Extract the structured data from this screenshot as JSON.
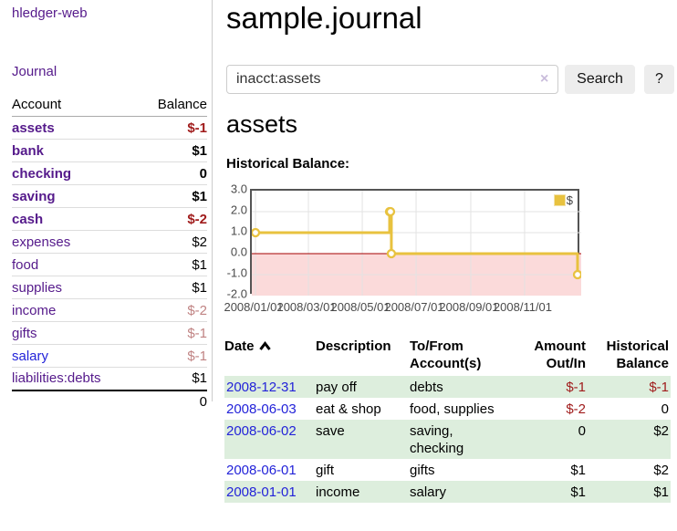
{
  "app": {
    "brand": "hledger-web",
    "nav_journal": "Journal"
  },
  "sidebar": {
    "col_account": "Account",
    "col_balance": "Balance",
    "accounts": [
      {
        "name": "assets",
        "balance": "$-1"
      },
      {
        "name": "bank",
        "balance": "$1"
      },
      {
        "name": "checking",
        "balance": "0"
      },
      {
        "name": "saving",
        "balance": "$1"
      },
      {
        "name": "cash",
        "balance": "$-2"
      },
      {
        "name": "expenses",
        "balance": "$2"
      },
      {
        "name": "food",
        "balance": "$1"
      },
      {
        "name": "supplies",
        "balance": "$1"
      },
      {
        "name": "income",
        "balance": "$-2"
      },
      {
        "name": "gifts",
        "balance": "$-1"
      },
      {
        "name": "salary",
        "balance": "$-1"
      },
      {
        "name": "liabilities:debts",
        "balance": "$1"
      }
    ],
    "total": "0"
  },
  "main": {
    "title": "sample.journal",
    "search": {
      "query": "inacct:assets",
      "clear": "×",
      "button": "Search",
      "help": "?"
    },
    "account_heading": "assets",
    "chart_label": "Historical Balance:"
  },
  "chart_data": {
    "type": "line",
    "step": true,
    "title": "Historical Balance",
    "series": [
      {
        "name": "$",
        "color": "#e8c23f",
        "points": [
          [
            "2008-01-01",
            1
          ],
          [
            "2008-06-01",
            2
          ],
          [
            "2008-06-02",
            2
          ],
          [
            "2008-06-03",
            0
          ],
          [
            "2008-12-31",
            -1
          ]
        ]
      }
    ],
    "x_range": [
      "2008-01-01",
      "2008-12-31"
    ],
    "x_ticks": [
      "2008/01/01",
      "2008/03/01",
      "2008/05/01",
      "2008/07/01",
      "2008/09/01",
      "2008/11/01"
    ],
    "y_ticks": [
      "3.0",
      "2.0",
      "1.0",
      "0.0",
      "-1.0",
      "-2.0"
    ],
    "ylim": [
      -2,
      3
    ],
    "grid": true,
    "legend_position": "top-right",
    "below_zero_fill": "#fbdada",
    "zero_line_color": "#a40000"
  },
  "register": {
    "columns": {
      "date": "Date",
      "description": "Description",
      "accounts": "To/From Account(s)",
      "amount": "Amount Out/In",
      "balance": "Historical Balance"
    },
    "rows": [
      {
        "date": "2008-12-31",
        "description": "pay off",
        "accounts": "debts",
        "amount": "$-1",
        "balance": "$-1"
      },
      {
        "date": "2008-06-03",
        "description": "eat & shop",
        "accounts": "food, supplies",
        "amount": "$-2",
        "balance": "0"
      },
      {
        "date": "2008-06-02",
        "description": "save",
        "accounts": "saving, checking",
        "amount": "0",
        "balance": "$2"
      },
      {
        "date": "2008-06-01",
        "description": "gift",
        "accounts": "gifts",
        "amount": "$1",
        "balance": "$2"
      },
      {
        "date": "2008-01-01",
        "description": "income",
        "accounts": "salary",
        "amount": "$1",
        "balance": "$1"
      }
    ]
  },
  "colors": {
    "link_purple": "#551a8b",
    "link_blue": "#2323d9",
    "negative_strong": "#a01c1c",
    "negative_weak": "#c08383",
    "row_green": "#ddeedd",
    "chart_gold": "#e8c23f",
    "chart_below_zero": "#fbdada",
    "chart_zero_line": "#a40000",
    "chart_border": "#545454",
    "button_bg": "#ededed"
  }
}
